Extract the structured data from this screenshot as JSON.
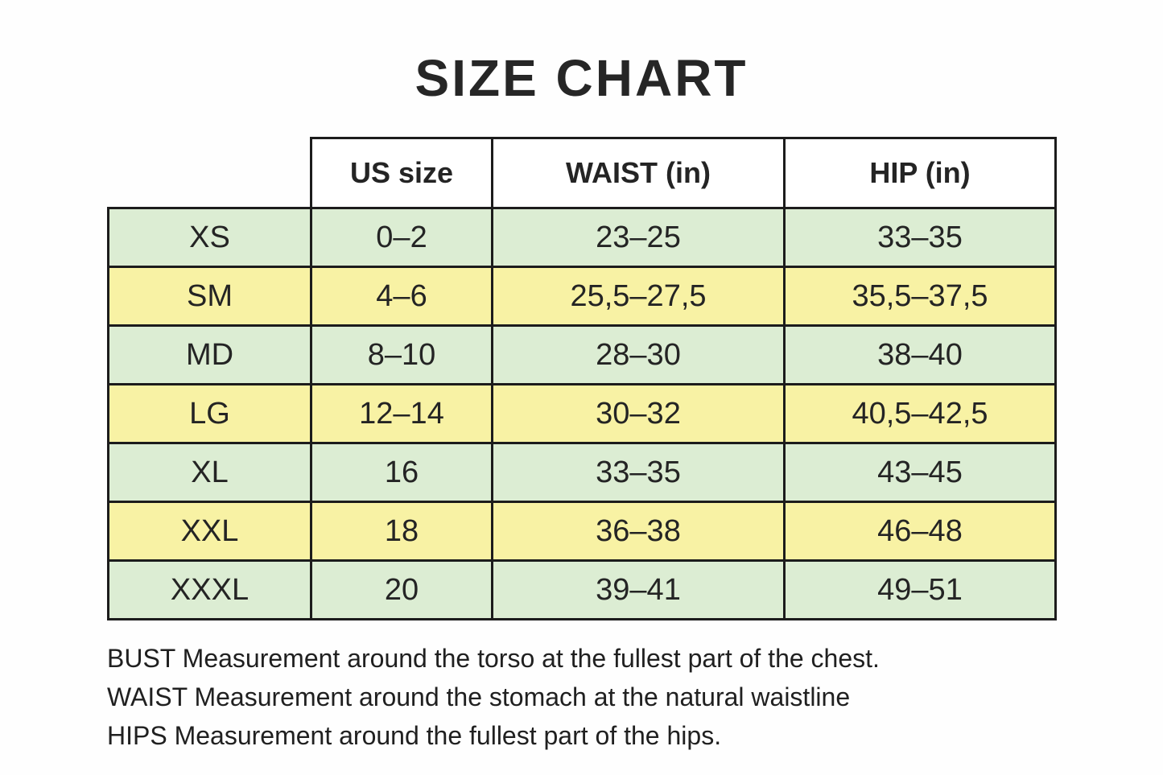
{
  "title": "SIZE CHART",
  "table": {
    "headers": {
      "us_size": "US size",
      "waist": "WAIST (in)",
      "hip": "HIP (in)"
    },
    "rows": [
      {
        "size": "XS",
        "us_size": "0–2",
        "waist": "23–25",
        "hip": "33–35"
      },
      {
        "size": "SM",
        "us_size": "4–6",
        "waist": "25,5–27,5",
        "hip": "35,5–37,5"
      },
      {
        "size": "MD",
        "us_size": "8–10",
        "waist": "28–30",
        "hip": "38–40"
      },
      {
        "size": "LG",
        "us_size": "12–14",
        "waist": "30–32",
        "hip": "40,5–42,5"
      },
      {
        "size": "XL",
        "us_size": "16",
        "waist": "33–35",
        "hip": "43–45"
      },
      {
        "size": "XXL",
        "us_size": "18",
        "waist": "36–38",
        "hip": "46–48"
      },
      {
        "size": "XXXL",
        "us_size": "20",
        "waist": "39–41",
        "hip": "49–51"
      }
    ]
  },
  "notes": [
    "BUST Measurement around the torso at the fullest part of the chest.",
    "WAIST Measurement around the stomach at the natural waistline",
    "HIPS Measurement around the fullest part of the hips."
  ],
  "colors": {
    "row-green": "#dcedd3",
    "row-yellow": "#f8f2a4",
    "border": "#1c1c1c",
    "header-bg": "#ffffff",
    "ink": "#222222",
    "bg": "#fefefe"
  }
}
